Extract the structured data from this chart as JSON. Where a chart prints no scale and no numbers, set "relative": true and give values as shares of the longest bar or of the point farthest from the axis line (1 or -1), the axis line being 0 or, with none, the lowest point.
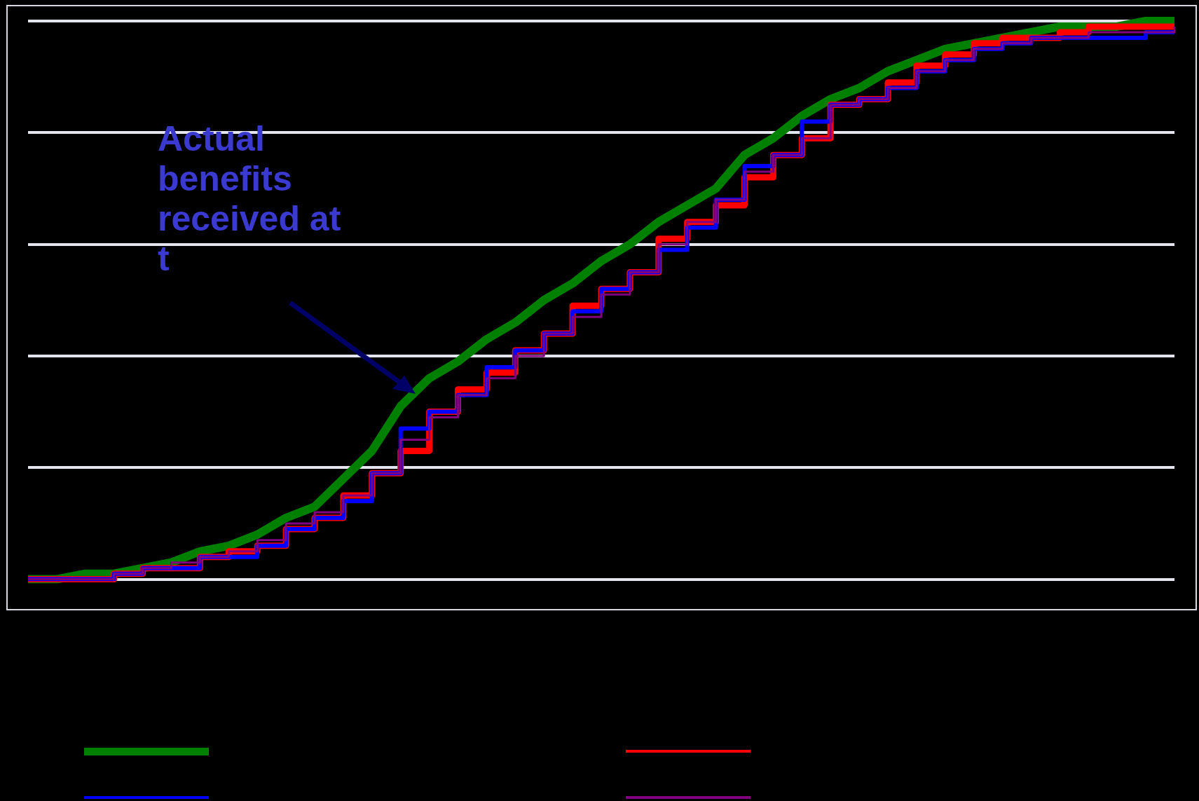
{
  "chart_data": {
    "type": "line",
    "relative": true,
    "grid": "y",
    "legend": false,
    "categories": [
      null,
      null,
      null,
      null,
      null,
      null,
      null,
      null,
      null,
      null,
      null,
      null,
      null,
      null,
      null,
      null,
      null,
      null,
      null,
      null,
      null,
      null,
      null,
      null,
      null,
      null,
      null,
      null,
      null,
      null,
      null,
      null,
      null,
      null,
      null,
      null,
      null,
      null,
      null,
      null,
      null
    ],
    "annotations": [
      "Actual benefits received at t"
    ],
    "series": [
      {
        "color": "#008000",
        "values": [
          0,
          0,
          0.01,
          0.01,
          0.02,
          0.03,
          0.05,
          0.06,
          0.08,
          0.11,
          0.13,
          0.18,
          0.23,
          0.31,
          0.36,
          0.39,
          0.43,
          0.46,
          0.5,
          0.53,
          0.57,
          0.6,
          0.64,
          0.67,
          0.7,
          0.76,
          0.79,
          0.83,
          0.86,
          0.88,
          0.91,
          0.93,
          0.95,
          0.96,
          0.97,
          0.98,
          0.99,
          0.99,
          0.99,
          1,
          1
        ]
      },
      {
        "type": "step",
        "color": "#ff0000",
        "values": [
          0,
          0,
          0,
          0.01,
          0.02,
          0.02,
          0.04,
          0.05,
          0.06,
          0.09,
          0.11,
          0.15,
          0.19,
          0.23,
          0.3,
          0.34,
          0.37,
          0.41,
          0.44,
          0.49,
          0.52,
          0.55,
          0.61,
          0.64,
          0.67,
          0.72,
          0.76,
          0.79,
          0.85,
          0.86,
          0.89,
          0.92,
          0.94,
          0.96,
          0.97,
          0.97,
          0.98,
          0.99,
          0.99,
          0.99,
          0.99
        ]
      },
      {
        "type": "step",
        "color": "#0000ff",
        "values": [
          0,
          0,
          0,
          0.01,
          0.02,
          0.02,
          0.04,
          0.04,
          0.06,
          0.09,
          0.11,
          0.14,
          0.19,
          0.27,
          0.3,
          0.33,
          0.38,
          0.41,
          0.44,
          0.48,
          0.52,
          0.55,
          0.59,
          0.63,
          0.68,
          0.74,
          0.76,
          0.82,
          0.85,
          0.86,
          0.88,
          0.91,
          0.93,
          0.95,
          0.96,
          0.97,
          0.97,
          0.97,
          0.97,
          0.98,
          0.98
        ]
      },
      {
        "type": "step",
        "color": "#800080",
        "values": [
          0,
          0,
          0,
          0.01,
          0.02,
          0.03,
          0.04,
          0.05,
          0.07,
          0.1,
          0.12,
          0.15,
          0.19,
          0.25,
          0.29,
          0.33,
          0.36,
          0.4,
          0.44,
          0.47,
          0.51,
          0.55,
          0.6,
          0.64,
          0.68,
          0.73,
          0.76,
          0.79,
          0.85,
          0.86,
          0.88,
          0.91,
          0.93,
          0.95,
          0.96,
          0.97,
          0.97,
          0.98,
          0.98,
          0.98,
          0.99
        ]
      }
    ]
  }
}
